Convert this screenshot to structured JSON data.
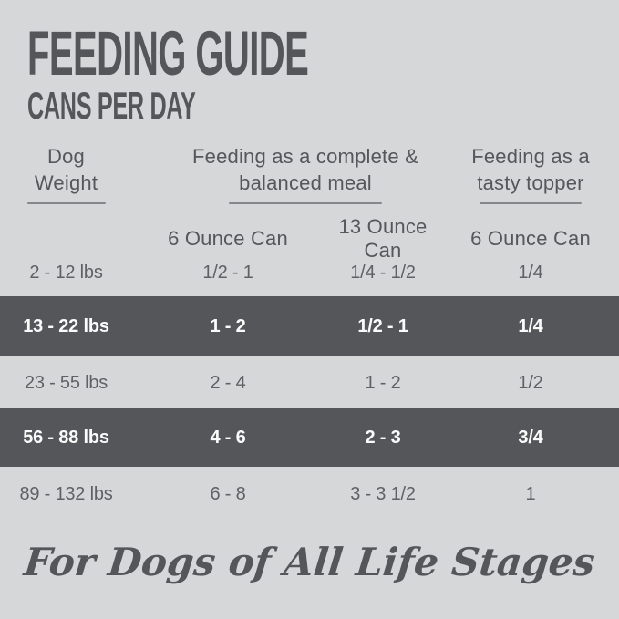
{
  "header": {
    "title": "FEEDING GUIDE",
    "subtitle": "CANS PER DAY"
  },
  "table": {
    "header_groups": {
      "weight": {
        "line1": "Dog",
        "line2": "Weight"
      },
      "meal": {
        "line1": "Feeding as a complete &",
        "line2": "balanced meal"
      },
      "topper": {
        "line1": "Feeding as a",
        "line2": "tasty topper"
      }
    },
    "subheaders": [
      "6 Ounce Can",
      "13 Ounce Can",
      "6 Ounce Can"
    ],
    "rows": [
      {
        "weight": "2 - 12 lbs",
        "six_oz_meal": "1/2 - 1",
        "thirteen_oz_meal": "1/4 - 1/2",
        "six_oz_topper": "1/4",
        "highlight": false
      },
      {
        "weight": "13 - 22 lbs",
        "six_oz_meal": "1 - 2",
        "thirteen_oz_meal": "1/2 - 1",
        "six_oz_topper": "1/4",
        "highlight": true
      },
      {
        "weight": "23 - 55 lbs",
        "six_oz_meal": "2 - 4",
        "thirteen_oz_meal": "1 - 2",
        "six_oz_topper": "1/2",
        "highlight": false
      },
      {
        "weight": "56 - 88 lbs",
        "six_oz_meal": "4 - 6",
        "thirteen_oz_meal": "2 - 3",
        "six_oz_topper": "3/4",
        "highlight": true
      },
      {
        "weight": "89 - 132 lbs",
        "six_oz_meal": "6 - 8",
        "thirteen_oz_meal": "3 - 3 1/2",
        "six_oz_topper": "1",
        "highlight": false
      }
    ]
  },
  "footer": {
    "tagline": "For Dogs of All Life Stages"
  },
  "colors": {
    "background": "#d6d7d9",
    "highlight_band": "#545659",
    "heading_text": "#55575b",
    "body_text": "#5f6165",
    "band_text": "#fbfbfc",
    "underline": "#85878b"
  }
}
